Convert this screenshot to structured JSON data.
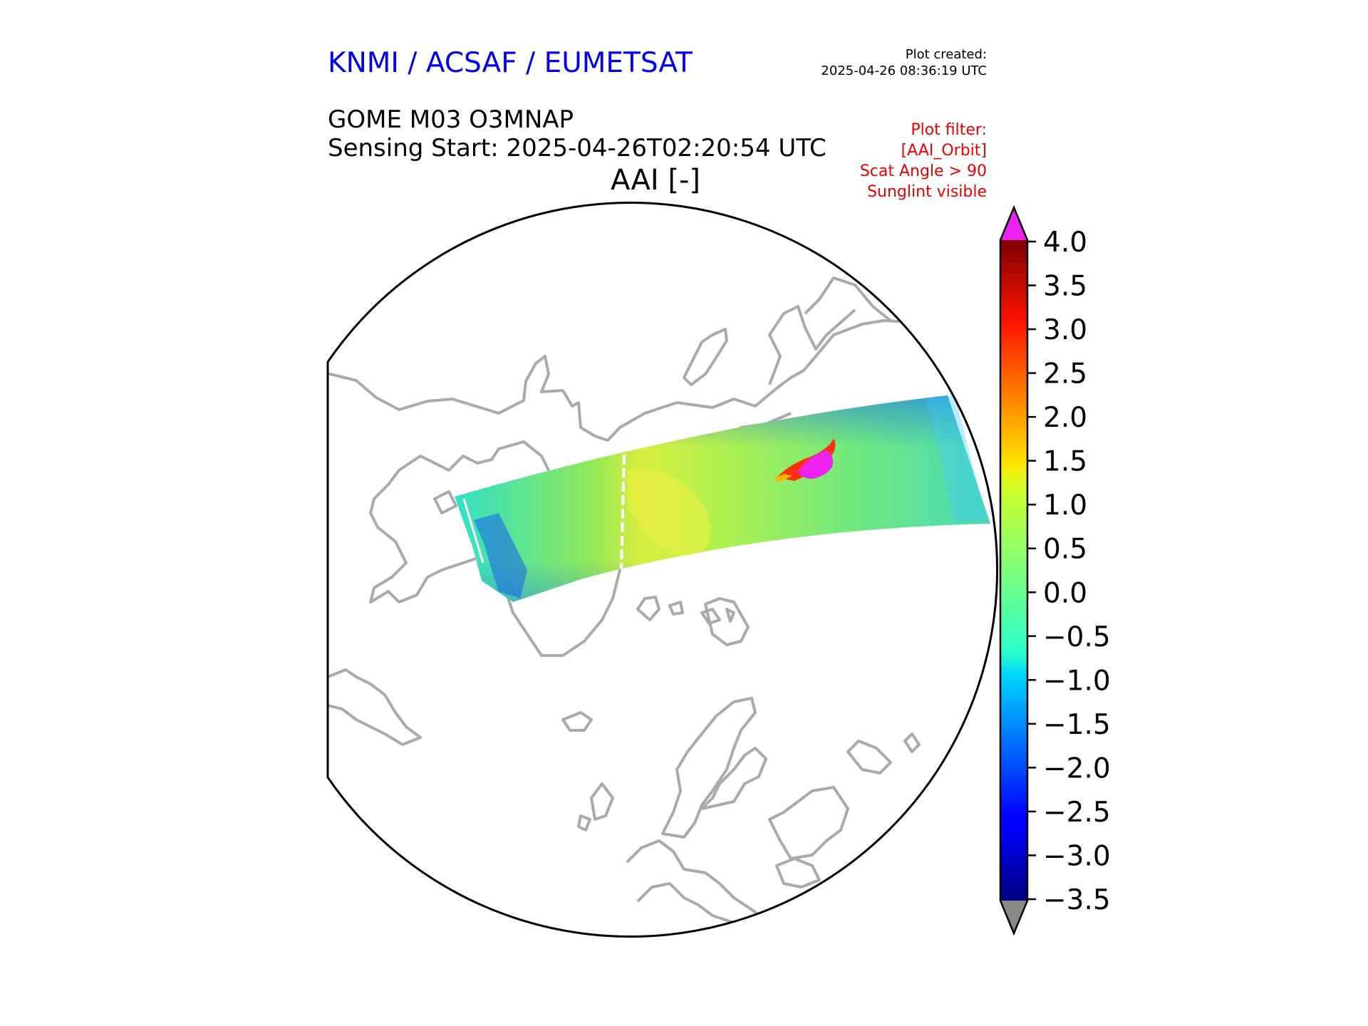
{
  "header": {
    "organization": "KNMI / ACSAF / EUMETSAT",
    "plot_created_label": "Plot created:",
    "plot_created_time": "2025-04-26 08:36:19 UTC",
    "product_title": "GOME M03 O3MNAP",
    "sensing_start": "Sensing Start: 2025-04-26T02:20:54 UTC",
    "variable_label": "AAI [-]"
  },
  "plot_filter": {
    "label": "Plot filter:",
    "lines": [
      "[AAI_Orbit]",
      "Scat Angle > 90",
      "Sunglint visible"
    ]
  },
  "colors": {
    "organization": "#0000ee",
    "filter": "#ee0000",
    "coastline": "#aaaaaa",
    "over": "#ee22ee",
    "under": "#888888"
  },
  "colorbar": {
    "vmin": -3.5,
    "vmax": 4.0,
    "extend": "both",
    "colormap": "jet",
    "ticks": [
      "4.0",
      "3.5",
      "3.0",
      "2.5",
      "2.0",
      "1.5",
      "1.0",
      "0.5",
      "0.0",
      "−0.5",
      "−1.0",
      "−1.5",
      "−2.0",
      "−2.5",
      "−3.0",
      "−3.5"
    ]
  },
  "map": {
    "projection": "north polar stereographic",
    "features": [
      "coastlines",
      "satellite orbit swath",
      "high AAI plume (over 4.0)"
    ]
  }
}
